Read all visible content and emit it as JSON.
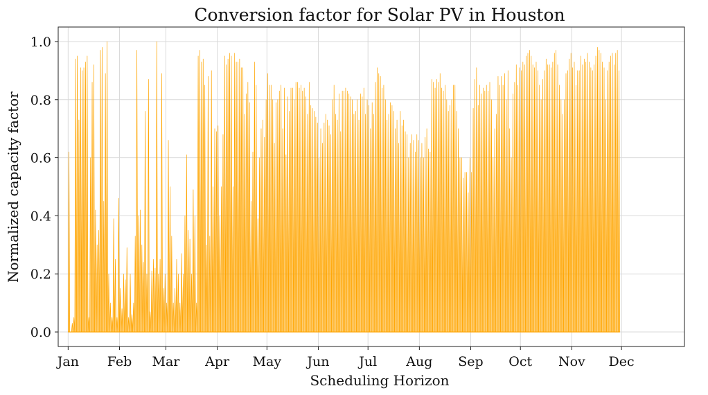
{
  "chart_data": {
    "type": "area",
    "title": "Conversion factor for Solar PV in Houston",
    "xlabel": "Scheduling Horizon",
    "ylabel": "Normalized capacity factor",
    "ylim": [
      -0.05,
      1.05
    ],
    "yticks": [
      0.0,
      0.2,
      0.4,
      0.6,
      0.8,
      1.0
    ],
    "ytick_labels": [
      "0.0",
      "0.2",
      "0.4",
      "0.6",
      "0.8",
      "1.0"
    ],
    "xlim_days": [
      -6,
      372
    ],
    "xticks_days": [
      0,
      31,
      59,
      90,
      120,
      151,
      181,
      212,
      243,
      273,
      304,
      334
    ],
    "xtick_labels": [
      "Jan",
      "Feb",
      "Mar",
      "Apr",
      "May",
      "Jun",
      "Jul",
      "Aug",
      "Sep",
      "Oct",
      "Nov",
      "Dec"
    ],
    "grid": true,
    "color": "#FFA500",
    "series": [
      {
        "values": [
          0.62,
          0.0,
          0.03,
          0.05,
          0.94,
          0.95,
          0.73,
          0.91,
          0.9,
          0.91,
          0.93,
          0.95,
          0.05,
          0.6,
          0.86,
          0.92,
          0.42,
          0.3,
          0.35,
          0.97,
          0.98,
          0.45,
          0.89,
          1.0,
          0.2,
          0.1,
          0.05,
          0.39,
          0.25,
          0.05,
          0.46,
          0.15,
          0.08,
          0.2,
          0.18,
          0.29,
          0.05,
          0.2,
          0.06,
          0.1,
          0.33,
          0.97,
          0.4,
          0.42,
          0.3,
          0.24,
          0.76,
          0.2,
          0.87,
          0.07,
          0.21,
          0.25,
          0.22,
          1.0,
          0.2,
          0.25,
          0.89,
          0.15,
          0.2,
          0.1,
          0.66,
          0.5,
          0.33,
          0.1,
          0.15,
          0.25,
          0.2,
          0.1,
          0.27,
          0.2,
          0.4,
          0.61,
          0.35,
          0.32,
          0.2,
          0.49,
          0.4,
          0.1,
          0.95,
          0.97,
          0.93,
          0.94,
          0.85,
          0.3,
          0.88,
          0.33,
          0.9,
          0.5,
          0.7,
          0.69,
          0.71,
          0.4,
          0.5,
          0.68,
          0.95,
          0.92,
          0.94,
          0.96,
          0.95,
          0.5,
          0.96,
          0.93,
          0.93,
          0.94,
          0.91,
          0.91,
          0.75,
          0.82,
          0.86,
          0.79,
          0.45,
          0.62,
          0.93,
          0.85,
          0.39,
          0.6,
          0.7,
          0.73,
          0.67,
          0.8,
          0.89,
          0.85,
          0.85,
          0.8,
          0.65,
          0.79,
          0.8,
          0.83,
          0.85,
          0.7,
          0.84,
          0.61,
          0.81,
          0.76,
          0.84,
          0.84,
          0.8,
          0.86,
          0.86,
          0.84,
          0.85,
          0.83,
          0.84,
          0.81,
          0.75,
          0.86,
          0.78,
          0.77,
          0.76,
          0.74,
          0.72,
          0.6,
          0.7,
          0.65,
          0.72,
          0.75,
          0.73,
          0.71,
          0.68,
          0.8,
          0.85,
          0.75,
          0.73,
          0.82,
          0.69,
          0.83,
          0.83,
          0.84,
          0.83,
          0.82,
          0.81,
          0.8,
          0.75,
          0.76,
          0.8,
          0.73,
          0.82,
          0.81,
          0.84,
          0.75,
          0.8,
          0.78,
          0.7,
          0.79,
          0.75,
          0.86,
          0.91,
          0.89,
          0.88,
          0.84,
          0.85,
          0.8,
          0.73,
          0.75,
          0.79,
          0.78,
          0.76,
          0.7,
          0.73,
          0.65,
          0.76,
          0.71,
          0.73,
          0.69,
          0.68,
          0.6,
          0.65,
          0.68,
          0.66,
          0.62,
          0.68,
          0.66,
          0.6,
          0.65,
          0.6,
          0.67,
          0.7,
          0.63,
          0.62,
          0.87,
          0.86,
          0.84,
          0.87,
          0.86,
          0.89,
          0.84,
          0.83,
          0.85,
          0.8,
          0.76,
          0.78,
          0.8,
          0.85,
          0.85,
          0.76,
          0.7,
          0.6,
          0.6,
          0.53,
          0.55,
          0.55,
          0.48,
          0.6,
          0.55,
          0.77,
          0.87,
          0.91,
          0.78,
          0.85,
          0.82,
          0.84,
          0.83,
          0.85,
          0.83,
          0.86,
          0.8,
          0.6,
          0.7,
          0.75,
          0.88,
          0.85,
          0.88,
          0.85,
          0.89,
          0.8,
          0.9,
          0.7,
          0.6,
          0.82,
          0.86,
          0.92,
          0.85,
          0.91,
          0.9,
          0.93,
          0.92,
          0.95,
          0.96,
          0.97,
          0.95,
          0.92,
          0.91,
          0.93,
          0.9,
          0.85,
          0.8,
          0.87,
          0.9,
          0.94,
          0.92,
          0.92,
          0.91,
          0.93,
          0.96,
          0.97,
          0.92,
          0.85,
          0.8,
          0.75,
          0.8,
          0.89,
          0.9,
          0.94,
          0.96,
          0.91,
          0.93,
          0.85,
          0.9,
          0.9,
          0.95,
          0.92,
          0.94,
          0.93,
          0.96,
          0.93,
          0.91,
          0.9,
          0.92,
          0.95,
          0.98,
          0.97,
          0.96,
          0.93,
          0.91,
          0.8,
          0.9,
          0.93,
          0.95,
          0.96,
          0.92,
          0.96,
          0.97,
          0.9
        ]
      }
    ]
  }
}
